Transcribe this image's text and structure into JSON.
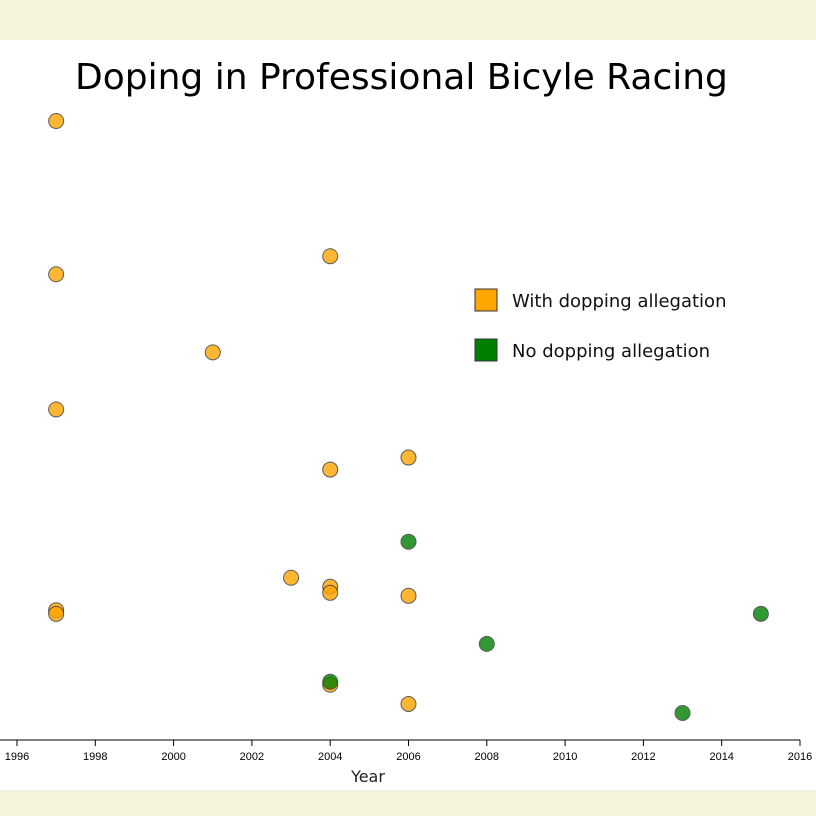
{
  "chart_data": {
    "type": "scatter",
    "title": "Doping in Professional Bicyle Racing",
    "xlabel": "Year",
    "ylabel": "",
    "xlim": [
      1996,
      2016
    ],
    "x_ticks": [
      1996,
      1998,
      2000,
      2002,
      2004,
      2006,
      2008,
      2010,
      2012,
      2014,
      2016
    ],
    "ylim": [
      0,
      100
    ],
    "grid": false,
    "legend_placement": "right",
    "series": [
      {
        "name": "With dopping allegation",
        "color": "#FFA500",
        "points": [
          {
            "x": 1997,
            "y": 100
          },
          {
            "x": 1997,
            "y": 74.5
          },
          {
            "x": 1997,
            "y": 52
          },
          {
            "x": 1997,
            "y": 18.6
          },
          {
            "x": 1997,
            "y": 18
          },
          {
            "x": 2001,
            "y": 61.5
          },
          {
            "x": 2003,
            "y": 24
          },
          {
            "x": 2004,
            "y": 77.5
          },
          {
            "x": 2004,
            "y": 42
          },
          {
            "x": 2004,
            "y": 22.5
          },
          {
            "x": 2004,
            "y": 21.5
          },
          {
            "x": 2004,
            "y": 6.2
          },
          {
            "x": 2006,
            "y": 44
          },
          {
            "x": 2006,
            "y": 21
          },
          {
            "x": 2006,
            "y": 3
          }
        ]
      },
      {
        "name": "No dopping allegation",
        "color": "#008000",
        "points": [
          {
            "x": 2004,
            "y": 6.7
          },
          {
            "x": 2006,
            "y": 30
          },
          {
            "x": 2008,
            "y": 13
          },
          {
            "x": 2013,
            "y": 1.5
          },
          {
            "x": 2015,
            "y": 18
          }
        ]
      }
    ]
  }
}
